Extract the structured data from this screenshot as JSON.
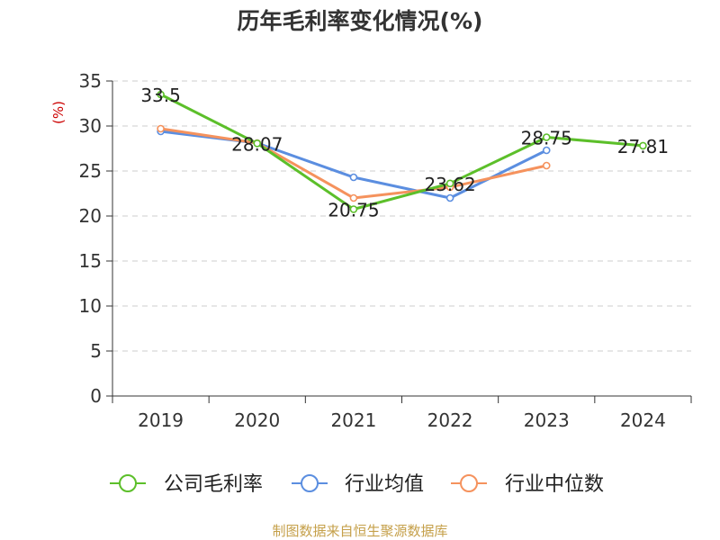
{
  "source_note": "制图数据来自恒生聚源数据库",
  "colors": {
    "series_1": "#5cbf2a",
    "series_2": "#5b8ee0",
    "series_3": "#f5925d",
    "ylabel": "#cc0000",
    "grid": "#cccccc",
    "axis": "#333333"
  },
  "chart_data": {
    "type": "line",
    "title": "历年毛利率变化情况(%)",
    "ylabel": "(%)",
    "xlabel": "",
    "categories": [
      "2019",
      "2020",
      "2021",
      "2022",
      "2023",
      "2024"
    ],
    "ylim": [
      0,
      35
    ],
    "yticks": [
      0,
      5,
      10,
      15,
      20,
      25,
      30,
      35
    ],
    "grid": true,
    "legend_position": "bottom",
    "series": [
      {
        "name": "公司毛利率",
        "values": [
          33.5,
          28.07,
          20.75,
          23.62,
          28.75,
          27.81
        ],
        "labels": [
          "33.5",
          "28.07",
          "20.75",
          "23.62",
          "28.75",
          "27.81"
        ]
      },
      {
        "name": "行业均值",
        "values": [
          29.4,
          28.1,
          24.3,
          22.0,
          27.3,
          null
        ]
      },
      {
        "name": "行业中位数",
        "values": [
          29.7,
          28.1,
          22.0,
          23.2,
          25.6,
          null
        ]
      }
    ]
  }
}
